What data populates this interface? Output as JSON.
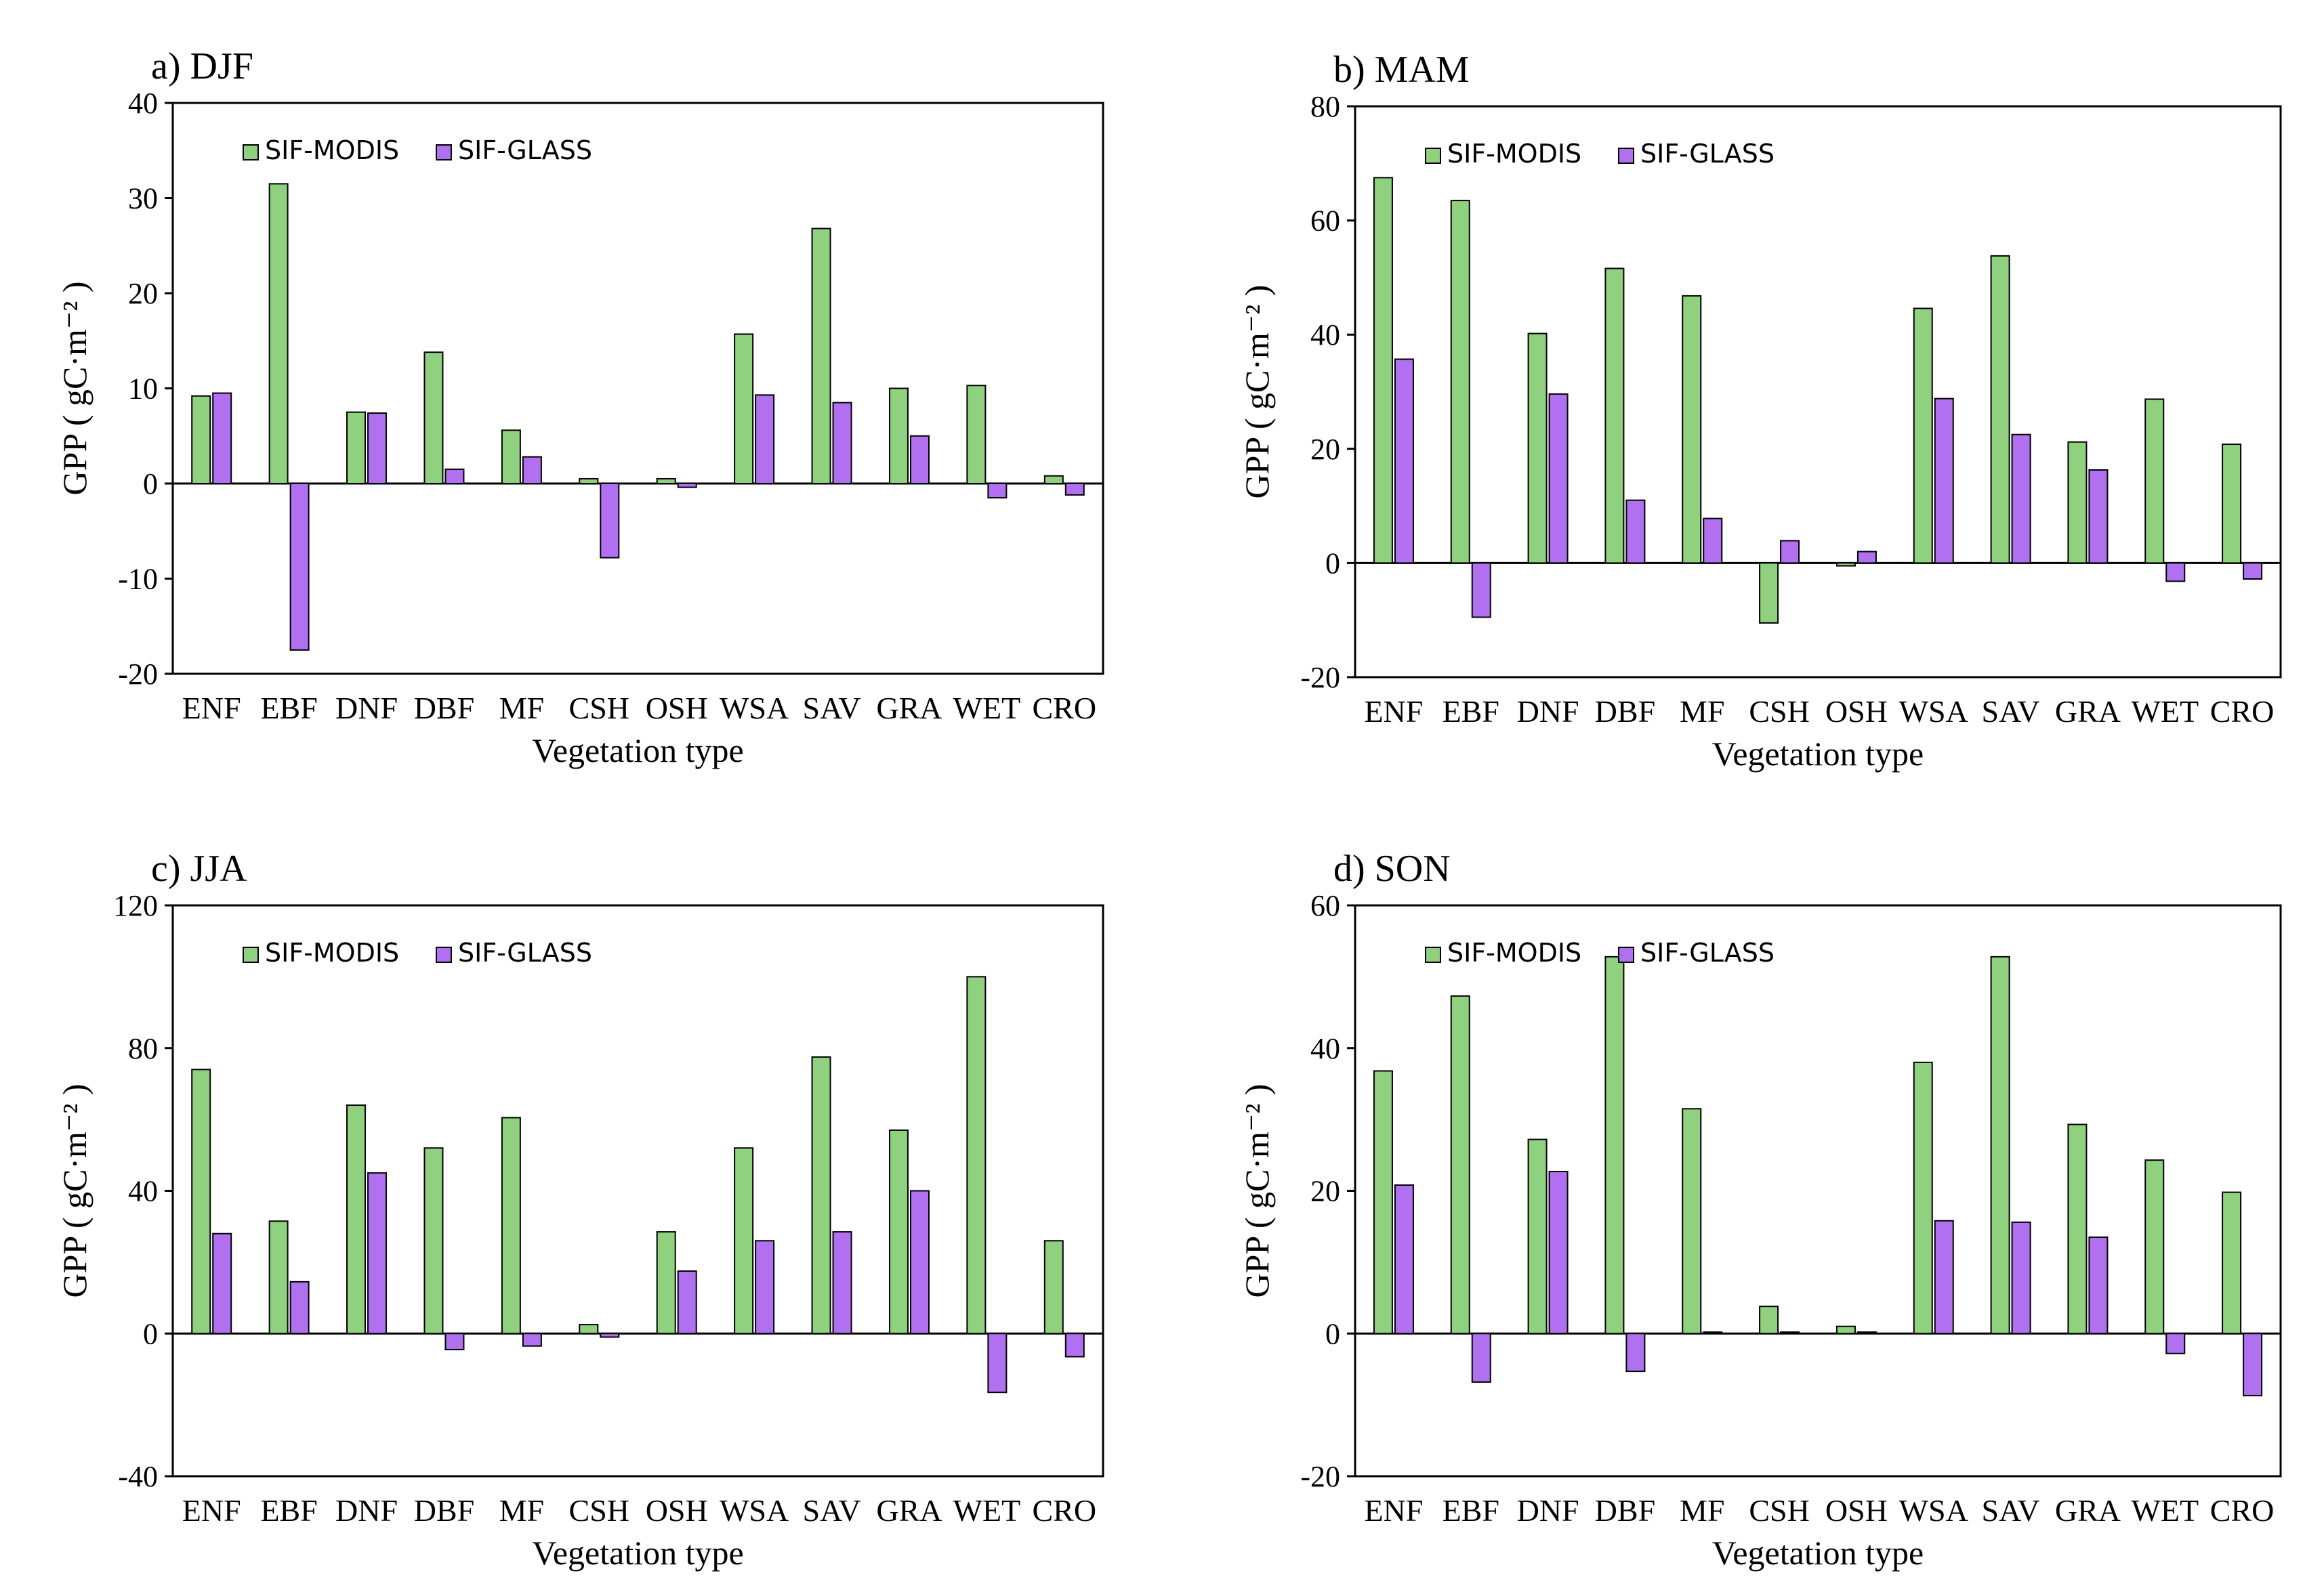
{
  "figure": {
    "ylabel": "GPP ( gC·m⁻² )",
    "xlabel": "Vegetation type",
    "legend": [
      {
        "name": "SIF-MODIS",
        "color": "#8fd17f"
      },
      {
        "name": "SIF-GLASS",
        "color": "#b070f0"
      }
    ]
  },
  "chart_data": [
    {
      "type": "bar",
      "title": "a) DJF",
      "xlabel": "Vegetation type",
      "ylabel": "GPP ( gC·m⁻² )",
      "ylim": [
        -20,
        40
      ],
      "yticks": [
        -20,
        -10,
        0,
        10,
        20,
        30,
        40
      ],
      "categories": [
        "ENF",
        "EBF",
        "DNF",
        "DBF",
        "MF",
        "CSH",
        "OSH",
        "WSA",
        "SAV",
        "GRA",
        "WET",
        "CRO"
      ],
      "series": [
        {
          "name": "SIF-MODIS",
          "color": "#8fd17f",
          "values": [
            9.2,
            31.5,
            7.5,
            13.8,
            5.6,
            0.5,
            0.5,
            15.7,
            26.8,
            10.0,
            10.3,
            0.8
          ]
        },
        {
          "name": "SIF-GLASS",
          "color": "#b070f0",
          "values": [
            9.5,
            -17.5,
            7.4,
            1.5,
            2.8,
            -7.8,
            -0.4,
            9.3,
            8.5,
            5.0,
            -1.5,
            -1.2
          ]
        }
      ]
    },
    {
      "type": "bar",
      "title": "b) MAM",
      "xlabel": "Vegetation type",
      "ylabel": "GPP ( gC·m⁻² )",
      "ylim": [
        -20,
        80
      ],
      "yticks": [
        -20,
        0,
        20,
        40,
        60,
        80
      ],
      "categories": [
        "ENF",
        "EBF",
        "DNF",
        "DBF",
        "MF",
        "CSH",
        "OSH",
        "WSA",
        "SAV",
        "GRA",
        "WET",
        "CRO"
      ],
      "series": [
        {
          "name": "SIF-MODIS",
          "color": "#8fd17f",
          "values": [
            67.5,
            63.5,
            40.2,
            51.6,
            46.8,
            -10.5,
            -0.5,
            44.6,
            53.8,
            21.2,
            28.7,
            20.8
          ]
        },
        {
          "name": "SIF-GLASS",
          "color": "#b070f0",
          "values": [
            35.7,
            -9.5,
            29.6,
            11.0,
            7.8,
            3.9,
            2.0,
            28.8,
            22.5,
            16.3,
            -3.2,
            -2.8
          ]
        }
      ]
    },
    {
      "type": "bar",
      "title": "c) JJA",
      "xlabel": "Vegetation type",
      "ylabel": "GPP ( gC·m⁻² )",
      "ylim": [
        -40,
        120
      ],
      "yticks": [
        -40,
        0,
        40,
        80,
        120
      ],
      "categories": [
        "ENF",
        "EBF",
        "DNF",
        "DBF",
        "MF",
        "CSH",
        "OSH",
        "WSA",
        "SAV",
        "GRA",
        "WET",
        "CRO"
      ],
      "series": [
        {
          "name": "SIF-MODIS",
          "color": "#8fd17f",
          "values": [
            74.0,
            31.5,
            64.0,
            52.0,
            60.5,
            2.5,
            28.5,
            52.0,
            77.5,
            57.0,
            100.0,
            26.0
          ]
        },
        {
          "name": "SIF-GLASS",
          "color": "#b070f0",
          "values": [
            28.0,
            14.5,
            45.0,
            -4.5,
            -3.5,
            -1.0,
            17.5,
            26.0,
            28.5,
            40.0,
            -16.5,
            -6.5
          ]
        }
      ]
    },
    {
      "type": "bar",
      "title": "d) SON",
      "xlabel": "Vegetation type",
      "ylabel": "GPP ( gC·m⁻² )",
      "ylim": [
        -20,
        60
      ],
      "yticks": [
        -20,
        0,
        20,
        40,
        60
      ],
      "categories": [
        "ENF",
        "EBF",
        "DNF",
        "DBF",
        "MF",
        "CSH",
        "OSH",
        "WSA",
        "SAV",
        "GRA",
        "WET",
        "CRO"
      ],
      "series": [
        {
          "name": "SIF-MODIS",
          "color": "#8fd17f",
          "values": [
            36.8,
            47.3,
            27.2,
            52.8,
            31.5,
            3.8,
            1.0,
            38.0,
            52.8,
            29.3,
            24.3,
            19.8
          ]
        },
        {
          "name": "SIF-GLASS",
          "color": "#b070f0",
          "values": [
            20.8,
            -6.8,
            22.7,
            -5.3,
            0.2,
            0.2,
            0.2,
            15.8,
            15.6,
            13.5,
            -2.8,
            -8.7
          ]
        }
      ]
    }
  ]
}
